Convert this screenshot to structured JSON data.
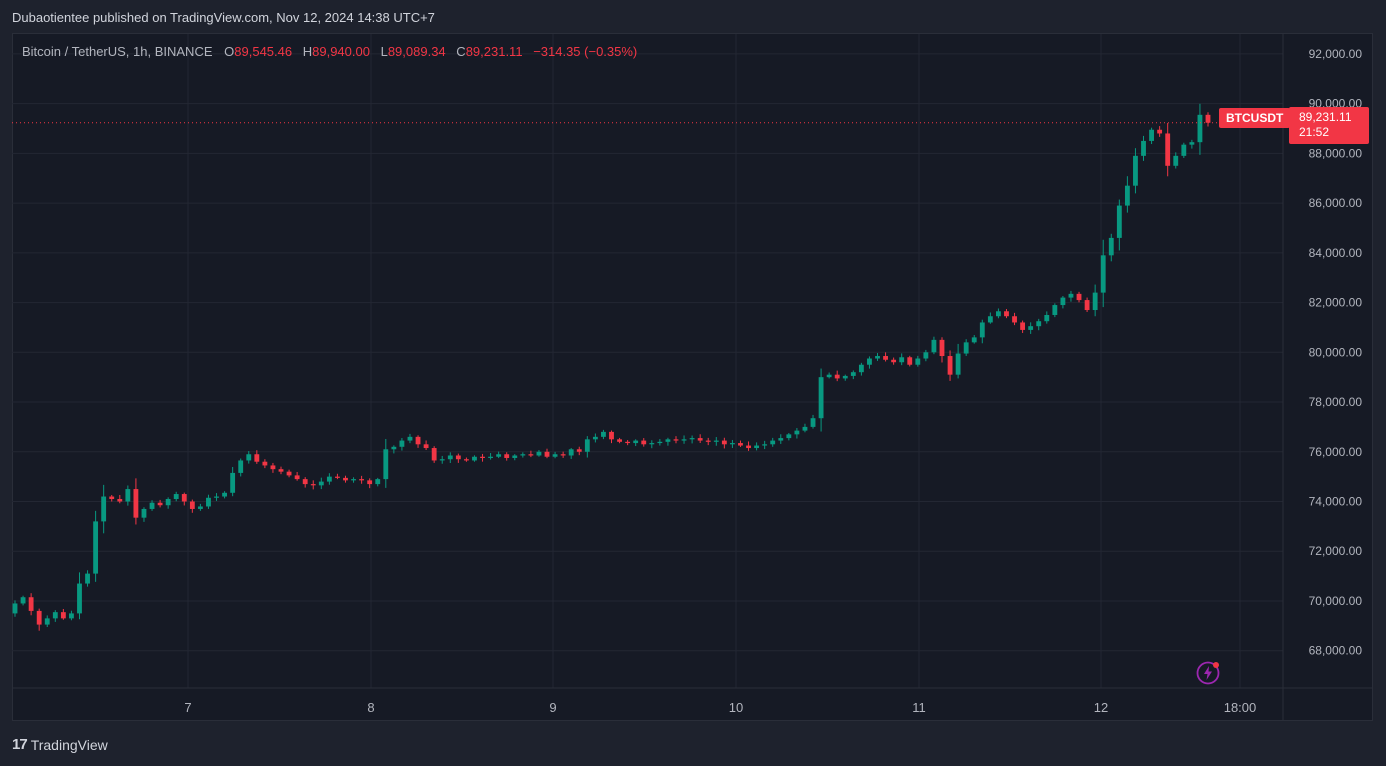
{
  "header": {
    "published": "Dubaotientee published on TradingView.com, Nov 12, 2024 14:38 UTC+7"
  },
  "legend": {
    "symbol": "Bitcoin / TetherUS, 1h, BINANCE",
    "o_label": "O",
    "o_value": "89,545.46",
    "h_label": "H",
    "h_value": "89,940.00",
    "l_label": "L",
    "l_value": "89,089.34",
    "c_label": "C",
    "c_value": "89,231.11",
    "change": "−314.35 (−0.35%)"
  },
  "price_tag": {
    "ticker": "BTCUSDT",
    "price": "89,231.11",
    "countdown": "21:52"
  },
  "footer": {
    "logo_text": "TradingView"
  },
  "icons": {
    "flash": "lightning-icon",
    "logo": "tradingview-logo-icon"
  },
  "colors": {
    "up": "#089981",
    "down": "#f23645",
    "background": "#161a25",
    "grid": "#232733",
    "text": "#b2b5be"
  },
  "chart_data": {
    "type": "candlestick",
    "timeframe": "1h",
    "ylim": [
      66500,
      92800
    ],
    "yticks": [
      68000,
      70000,
      72000,
      74000,
      76000,
      78000,
      80000,
      82000,
      84000,
      86000,
      88000,
      90000,
      92000
    ],
    "ytick_labels": [
      "68,000.00",
      "70,000.00",
      "72,000.00",
      "74,000.00",
      "76,000.00",
      "78,000.00",
      "80,000.00",
      "82,000.00",
      "84,000.00",
      "86,000.00",
      "88,000.00",
      "90,000.00",
      "92,000.00"
    ],
    "xtick_labels": [
      "7",
      "8",
      "9",
      "10",
      "11",
      "12",
      "18:00"
    ],
    "last_price": 89231.11,
    "series": [
      {
        "values": [
          69900,
          70150,
          69600,
          69050,
          69300,
          69550,
          69300,
          69500,
          70700,
          71100,
          73200,
          74200,
          74100,
          74000,
          74500,
          73350,
          73700,
          73950,
          73850,
          74100,
          74300,
          74000,
          73700,
          73800,
          74150,
          74200,
          74350,
          75150,
          75650,
          75900,
          75600,
          75450,
          75300,
          75200,
          75050,
          74900,
          74700,
          74650,
          74800,
          75000,
          74950,
          74850,
          74900,
          74850,
          74700,
          74900,
          76100,
          76200,
          76450,
          76600,
          76300,
          76150,
          75650,
          75700,
          75850,
          75700,
          75650,
          75800,
          75750,
          75800,
          75900,
          75750,
          75850,
          75900,
          75850,
          76000,
          75800,
          75900,
          75850,
          76100,
          76000,
          76500,
          76600,
          76800,
          76500,
          76400,
          76350,
          76450,
          76300,
          76350,
          76400,
          76500,
          76450,
          76500,
          76550,
          76450,
          76400,
          76450,
          76300,
          76350,
          76250,
          76150,
          76250,
          76300,
          76450,
          76550,
          76700,
          76850,
          77000,
          77350,
          79000,
          79100,
          78950,
          79050,
          79200,
          79500,
          79750,
          79850,
          79700,
          79600,
          79800,
          79500,
          79750,
          80000,
          80500,
          79850,
          79100,
          79950,
          80400,
          80600,
          81200,
          81450,
          81650,
          81450,
          81200,
          80900,
          81050,
          81250,
          81500,
          81900,
          82200,
          82350,
          82100,
          81700,
          82400,
          83900,
          84600,
          85900,
          86700,
          87900,
          88500,
          88950,
          88800,
          87500,
          87900,
          88350,
          88450,
          89550,
          89231.11
        ]
      }
    ]
  }
}
